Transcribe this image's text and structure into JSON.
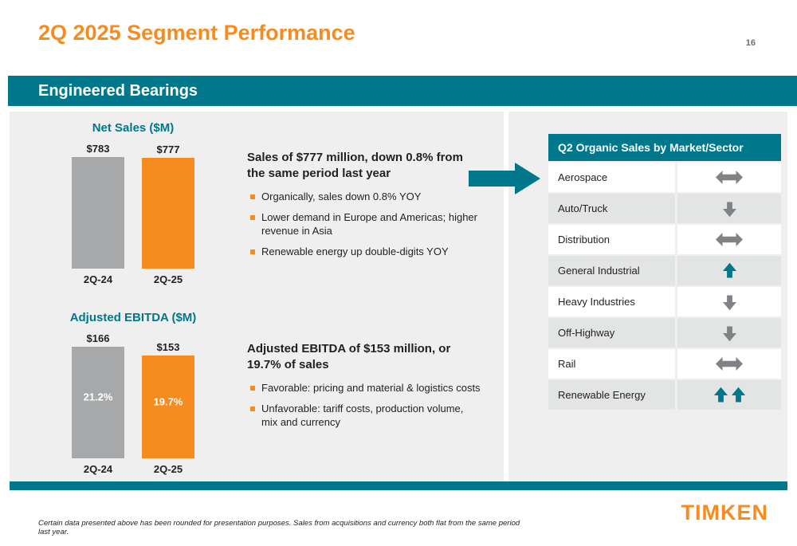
{
  "page": {
    "title": "2Q 2025 Segment Performance",
    "page_number": "16",
    "section": "Engineered Bearings",
    "footnote": "Certain data presented above has been rounded for presentation purposes. Sales from acquisitions and currency both flat from the same period last year.",
    "logo": "TIMKEN"
  },
  "colors": {
    "orange": "#F68B1F",
    "teal": "#00778B",
    "bar_gray": "#A6A8AA",
    "arrow_gray": "#808285"
  },
  "chart_data": [
    {
      "type": "bar",
      "title": "Net Sales ($M)",
      "categories": [
        "2Q-24",
        "2Q-25"
      ],
      "values": [
        783,
        777
      ],
      "value_labels": [
        "$783",
        "$777"
      ],
      "bar_colors": [
        "#A6A8AA",
        "#F68B1F"
      ],
      "xlabel": "",
      "ylabel": "",
      "grid": false,
      "legend": false
    },
    {
      "type": "bar",
      "title": "Adjusted EBITDA ($M)",
      "categories": [
        "2Q-24",
        "2Q-25"
      ],
      "values": [
        166,
        153
      ],
      "value_labels": [
        "$166",
        "$153"
      ],
      "inside_labels": [
        "21.2%",
        "19.7%"
      ],
      "bar_colors": [
        "#A6A8AA",
        "#F68B1F"
      ],
      "xlabel": "",
      "ylabel": "",
      "grid": false,
      "legend": false
    }
  ],
  "sales_block": {
    "heading": "Sales of $777 million, down 0.8% from the same period last year",
    "bullets": [
      "Organically, sales down 0.8% YOY",
      "Lower demand in Europe and Americas; higher revenue in Asia",
      "Renewable energy up double-digits YOY"
    ]
  },
  "ebitda_block": {
    "heading": "Adjusted EBITDA of $153 million, or 19.7% of sales",
    "bullets": [
      "Favorable: pricing and material & logistics costs",
      "Unfavorable: tariff costs, production volume, mix and currency"
    ]
  },
  "market_table": {
    "header": "Q2 Organic Sales by Market/Sector",
    "rows": [
      {
        "label": "Aerospace",
        "trend": "flat"
      },
      {
        "label": "Auto/Truck",
        "trend": "down"
      },
      {
        "label": "Distribution",
        "trend": "flat"
      },
      {
        "label": "General Industrial",
        "trend": "up"
      },
      {
        "label": "Heavy Industries",
        "trend": "down"
      },
      {
        "label": "Off-Highway",
        "trend": "down"
      },
      {
        "label": "Rail",
        "trend": "flat"
      },
      {
        "label": "Renewable Energy",
        "trend": "up-double"
      }
    ]
  }
}
